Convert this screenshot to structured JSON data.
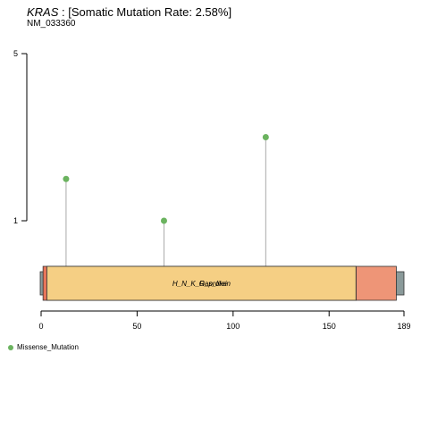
{
  "title": {
    "gene": "KRAS",
    "rest": " : [Somatic Mutation Rate: 2.58%]"
  },
  "subtitle": "NM_033360",
  "legend": {
    "label": "Missense_Mutation",
    "color": "#6bb35f"
  },
  "chart_data": {
    "type": "lollipop",
    "xlim": [
      0,
      189
    ],
    "x_ticks": [
      0,
      50,
      100,
      150,
      189
    ],
    "ylim": [
      0,
      5
    ],
    "y_ticks": [
      1,
      5
    ],
    "mutations": [
      {
        "position": 13,
        "count": 2,
        "type": "Missense_Mutation"
      },
      {
        "position": 64,
        "count": 1,
        "type": "Missense_Mutation"
      },
      {
        "position": 117,
        "count": 3,
        "type": "Missense_Mutation"
      }
    ],
    "protein": {
      "length": 189,
      "backbone_color": "#8a9a9a"
    },
    "domains": [
      {
        "start": 1,
        "end": 3,
        "color": "#e8755a",
        "label": ""
      },
      {
        "start": 3,
        "end": 164,
        "color": "#f5cf84",
        "label": "H_N_K_Ras_like"
      },
      {
        "start": 3,
        "end": 164,
        "color": "#f5cf84",
        "label": "G_protein"
      },
      {
        "start": 164,
        "end": 185,
        "color": "#ee9577",
        "label": ""
      }
    ]
  }
}
